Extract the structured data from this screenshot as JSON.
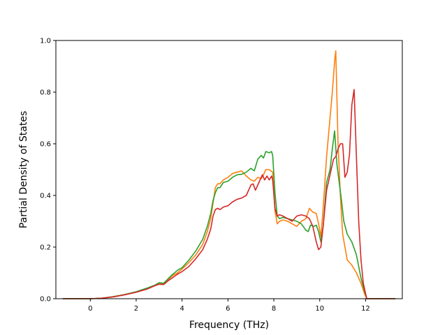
{
  "chart_data": {
    "type": "line",
    "title": "",
    "xlabel": "Frequency (THz)",
    "ylabel": "Partial Density of States",
    "xlim": [
      -1.5,
      13.6
    ],
    "ylim": [
      0.0,
      1.0
    ],
    "xticks": [
      0,
      2,
      4,
      6,
      8,
      10,
      12
    ],
    "yticks": [
      0.0,
      0.2,
      0.4,
      0.6,
      0.8,
      1.0
    ],
    "xtick_labels": [
      "0",
      "2",
      "4",
      "6",
      "8",
      "10",
      "12"
    ],
    "ytick_labels": [
      "0.0",
      "0.2",
      "0.4",
      "0.6",
      "0.8",
      "1.0"
    ],
    "grid": false,
    "legend": "none",
    "series": [
      {
        "color": "#ff7f0e",
        "points": [
          [
            -1.2,
            0.0
          ],
          [
            0.0,
            0.0
          ],
          [
            0.5,
            0.002
          ],
          [
            1.0,
            0.008
          ],
          [
            1.5,
            0.016
          ],
          [
            2.0,
            0.026
          ],
          [
            2.5,
            0.04
          ],
          [
            2.8,
            0.05
          ],
          [
            3.0,
            0.058
          ],
          [
            3.2,
            0.057
          ],
          [
            3.4,
            0.075
          ],
          [
            3.6,
            0.09
          ],
          [
            3.8,
            0.1
          ],
          [
            4.0,
            0.115
          ],
          [
            4.3,
            0.14
          ],
          [
            4.6,
            0.17
          ],
          [
            4.9,
            0.21
          ],
          [
            5.1,
            0.26
          ],
          [
            5.25,
            0.31
          ],
          [
            5.35,
            0.37
          ],
          [
            5.45,
            0.43
          ],
          [
            5.55,
            0.445
          ],
          [
            5.65,
            0.445
          ],
          [
            5.8,
            0.46
          ],
          [
            6.0,
            0.47
          ],
          [
            6.2,
            0.485
          ],
          [
            6.4,
            0.49
          ],
          [
            6.6,
            0.495
          ],
          [
            6.8,
            0.475
          ],
          [
            7.0,
            0.46
          ],
          [
            7.15,
            0.455
          ],
          [
            7.3,
            0.47
          ],
          [
            7.45,
            0.465
          ],
          [
            7.55,
            0.48
          ],
          [
            7.65,
            0.5
          ],
          [
            7.8,
            0.5
          ],
          [
            7.95,
            0.49
          ],
          [
            8.05,
            0.34
          ],
          [
            8.15,
            0.29
          ],
          [
            8.25,
            0.3
          ],
          [
            8.4,
            0.305
          ],
          [
            8.6,
            0.3
          ],
          [
            8.8,
            0.29
          ],
          [
            9.0,
            0.28
          ],
          [
            9.2,
            0.3
          ],
          [
            9.4,
            0.31
          ],
          [
            9.55,
            0.35
          ],
          [
            9.7,
            0.335
          ],
          [
            9.85,
            0.33
          ],
          [
            9.95,
            0.29
          ],
          [
            10.05,
            0.24
          ],
          [
            10.15,
            0.35
          ],
          [
            10.3,
            0.55
          ],
          [
            10.45,
            0.7
          ],
          [
            10.55,
            0.8
          ],
          [
            10.65,
            0.92
          ],
          [
            10.7,
            0.96
          ],
          [
            10.8,
            0.6
          ],
          [
            10.9,
            0.4
          ],
          [
            11.0,
            0.25
          ],
          [
            11.1,
            0.2
          ],
          [
            11.2,
            0.15
          ],
          [
            11.4,
            0.13
          ],
          [
            11.6,
            0.1
          ],
          [
            11.8,
            0.06
          ],
          [
            11.95,
            0.02
          ],
          [
            12.05,
            0.0
          ],
          [
            13.3,
            0.0
          ]
        ]
      },
      {
        "color": "#2ca02c",
        "points": [
          [
            -1.2,
            0.0
          ],
          [
            0.0,
            0.0
          ],
          [
            0.5,
            0.002
          ],
          [
            1.0,
            0.008
          ],
          [
            1.5,
            0.016
          ],
          [
            2.0,
            0.027
          ],
          [
            2.5,
            0.042
          ],
          [
            2.8,
            0.052
          ],
          [
            3.0,
            0.062
          ],
          [
            3.2,
            0.06
          ],
          [
            3.4,
            0.078
          ],
          [
            3.6,
            0.095
          ],
          [
            3.8,
            0.11
          ],
          [
            4.0,
            0.12
          ],
          [
            4.3,
            0.15
          ],
          [
            4.6,
            0.185
          ],
          [
            4.9,
            0.23
          ],
          [
            5.1,
            0.28
          ],
          [
            5.25,
            0.33
          ],
          [
            5.35,
            0.38
          ],
          [
            5.45,
            0.41
          ],
          [
            5.55,
            0.43
          ],
          [
            5.65,
            0.43
          ],
          [
            5.8,
            0.45
          ],
          [
            6.0,
            0.455
          ],
          [
            6.2,
            0.47
          ],
          [
            6.4,
            0.48
          ],
          [
            6.6,
            0.482
          ],
          [
            6.8,
            0.49
          ],
          [
            7.0,
            0.505
          ],
          [
            7.15,
            0.495
          ],
          [
            7.3,
            0.54
          ],
          [
            7.45,
            0.555
          ],
          [
            7.55,
            0.545
          ],
          [
            7.65,
            0.57
          ],
          [
            7.8,
            0.565
          ],
          [
            7.9,
            0.57
          ],
          [
            7.95,
            0.555
          ],
          [
            8.05,
            0.41
          ],
          [
            8.15,
            0.32
          ],
          [
            8.25,
            0.31
          ],
          [
            8.4,
            0.315
          ],
          [
            8.6,
            0.31
          ],
          [
            8.8,
            0.305
          ],
          [
            9.0,
            0.3
          ],
          [
            9.2,
            0.29
          ],
          [
            9.4,
            0.265
          ],
          [
            9.5,
            0.26
          ],
          [
            9.6,
            0.285
          ],
          [
            9.75,
            0.28
          ],
          [
            9.85,
            0.285
          ],
          [
            9.95,
            0.26
          ],
          [
            10.05,
            0.22
          ],
          [
            10.15,
            0.28
          ],
          [
            10.3,
            0.45
          ],
          [
            10.45,
            0.5
          ],
          [
            10.55,
            0.58
          ],
          [
            10.65,
            0.65
          ],
          [
            10.75,
            0.52
          ],
          [
            10.85,
            0.45
          ],
          [
            10.95,
            0.38
          ],
          [
            11.05,
            0.3
          ],
          [
            11.2,
            0.25
          ],
          [
            11.4,
            0.22
          ],
          [
            11.6,
            0.17
          ],
          [
            11.8,
            0.08
          ],
          [
            11.95,
            0.03
          ],
          [
            12.05,
            0.0
          ],
          [
            13.3,
            0.0
          ]
        ]
      },
      {
        "color": "#d62728",
        "points": [
          [
            -1.2,
            0.0
          ],
          [
            0.0,
            0.0
          ],
          [
            0.5,
            0.002
          ],
          [
            1.0,
            0.007
          ],
          [
            1.5,
            0.015
          ],
          [
            2.0,
            0.025
          ],
          [
            2.5,
            0.038
          ],
          [
            2.8,
            0.05
          ],
          [
            3.0,
            0.056
          ],
          [
            3.2,
            0.055
          ],
          [
            3.4,
            0.07
          ],
          [
            3.6,
            0.082
          ],
          [
            3.8,
            0.095
          ],
          [
            4.0,
            0.105
          ],
          [
            4.3,
            0.125
          ],
          [
            4.6,
            0.155
          ],
          [
            4.9,
            0.19
          ],
          [
            5.1,
            0.23
          ],
          [
            5.25,
            0.27
          ],
          [
            5.35,
            0.32
          ],
          [
            5.45,
            0.345
          ],
          [
            5.55,
            0.35
          ],
          [
            5.65,
            0.345
          ],
          [
            5.8,
            0.355
          ],
          [
            6.0,
            0.36
          ],
          [
            6.2,
            0.375
          ],
          [
            6.4,
            0.385
          ],
          [
            6.6,
            0.39
          ],
          [
            6.8,
            0.4
          ],
          [
            7.0,
            0.44
          ],
          [
            7.1,
            0.445
          ],
          [
            7.2,
            0.42
          ],
          [
            7.35,
            0.45
          ],
          [
            7.5,
            0.48
          ],
          [
            7.6,
            0.46
          ],
          [
            7.7,
            0.475
          ],
          [
            7.8,
            0.46
          ],
          [
            7.9,
            0.475
          ],
          [
            7.95,
            0.46
          ],
          [
            8.05,
            0.35
          ],
          [
            8.15,
            0.32
          ],
          [
            8.25,
            0.325
          ],
          [
            8.4,
            0.32
          ],
          [
            8.6,
            0.31
          ],
          [
            8.8,
            0.3
          ],
          [
            9.0,
            0.32
          ],
          [
            9.2,
            0.325
          ],
          [
            9.4,
            0.32
          ],
          [
            9.55,
            0.31
          ],
          [
            9.7,
            0.28
          ],
          [
            9.85,
            0.22
          ],
          [
            9.95,
            0.19
          ],
          [
            10.05,
            0.2
          ],
          [
            10.15,
            0.28
          ],
          [
            10.3,
            0.42
          ],
          [
            10.45,
            0.48
          ],
          [
            10.6,
            0.54
          ],
          [
            10.7,
            0.55
          ],
          [
            10.8,
            0.58
          ],
          [
            10.9,
            0.6
          ],
          [
            11.0,
            0.6
          ],
          [
            11.1,
            0.47
          ],
          [
            11.2,
            0.49
          ],
          [
            11.3,
            0.56
          ],
          [
            11.4,
            0.75
          ],
          [
            11.5,
            0.81
          ],
          [
            11.6,
            0.55
          ],
          [
            11.7,
            0.3
          ],
          [
            11.8,
            0.15
          ],
          [
            11.9,
            0.06
          ],
          [
            12.0,
            0.02
          ],
          [
            12.05,
            0.0
          ],
          [
            13.3,
            0.0
          ]
        ]
      }
    ]
  }
}
